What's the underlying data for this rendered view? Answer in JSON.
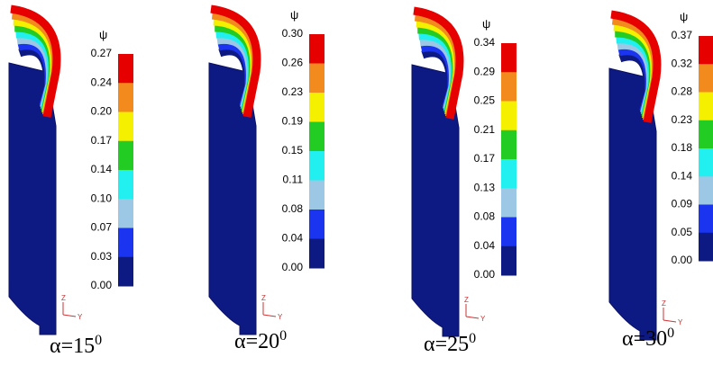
{
  "panels": [
    {
      "symbol": "ψ",
      "ticks": [
        "0.27",
        "0.24",
        "0.20",
        "0.17",
        "0.14",
        "0.10",
        "0.07",
        "0.03",
        "0.00"
      ],
      "caption": "α=15",
      "caption_sup": "0",
      "triad": {
        "z": "Z",
        "y": "Y"
      }
    },
    {
      "symbol": "ψ",
      "ticks": [
        "0.30",
        "0.26",
        "0.23",
        "0.19",
        "0.15",
        "0.11",
        "0.08",
        "0.04",
        "0.00"
      ],
      "caption": "α=20",
      "caption_sup": "0",
      "triad": {
        "z": "Z",
        "y": "Y"
      }
    },
    {
      "symbol": "ψ",
      "ticks": [
        "0.34",
        "0.29",
        "0.25",
        "0.21",
        "0.17",
        "0.13",
        "0.08",
        "0.04",
        "0.00"
      ],
      "caption": "α=25",
      "caption_sup": "0",
      "triad": {
        "z": "Z",
        "y": "Y"
      }
    },
    {
      "symbol": "ψ",
      "ticks": [
        "0.37",
        "0.32",
        "0.28",
        "0.23",
        "0.18",
        "0.14",
        "0.09",
        "0.05",
        "0.00"
      ],
      "caption": "α=30",
      "caption_sup": "0",
      "triad": {
        "z": "Z",
        "y": "Y"
      }
    }
  ]
}
